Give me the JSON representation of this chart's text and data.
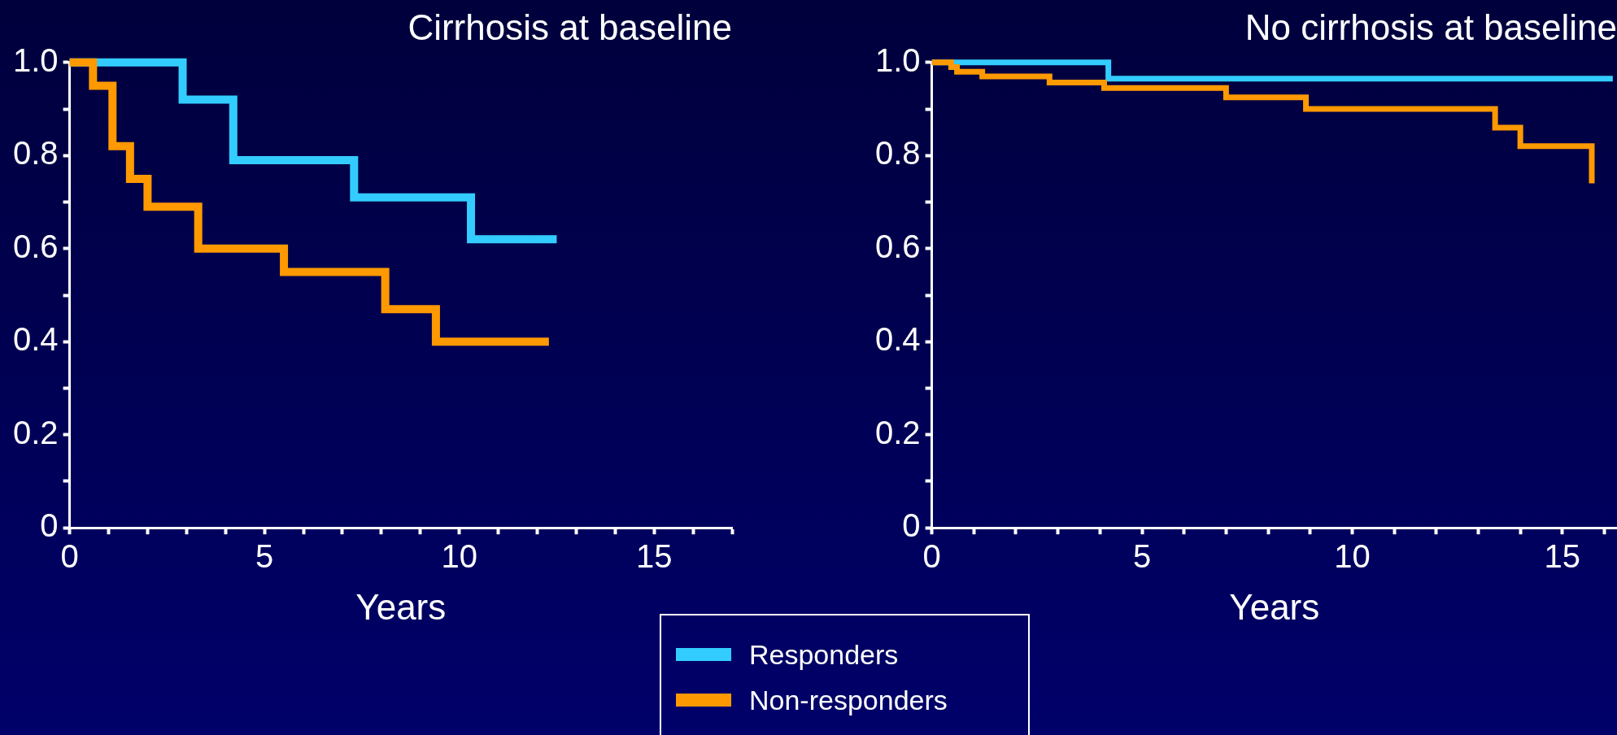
{
  "chart_data": [
    {
      "type": "step",
      "title": "Cirrhosis at baseline",
      "xlabel": "Years",
      "xlim": [
        0,
        17
      ],
      "ylim": [
        0,
        1
      ],
      "xticks": [
        0,
        {
          "value": 1,
          "label": null
        },
        {
          "value": 2,
          "label": null
        },
        {
          "value": 3,
          "label": null
        },
        {
          "value": 4,
          "label": null
        },
        5,
        {
          "value": 6,
          "label": null
        },
        {
          "value": 7,
          "label": null
        },
        {
          "value": 8,
          "label": null
        },
        {
          "value": 9,
          "label": null
        },
        10,
        {
          "value": 11,
          "label": null
        },
        {
          "value": 12,
          "label": null
        },
        {
          "value": 13,
          "label": null
        },
        {
          "value": 14,
          "label": null
        },
        15,
        {
          "value": 16,
          "label": null
        },
        {
          "value": 17,
          "label": null
        }
      ],
      "yticks": [
        0,
        {
          "value": 0.1,
          "label": null
        },
        0.2,
        {
          "value": 0.3,
          "label": null
        },
        0.4,
        {
          "value": 0.5,
          "label": null
        },
        0.6,
        {
          "value": 0.7,
          "label": null
        },
        0.8,
        {
          "value": 0.9,
          "label": null
        },
        {
          "value": 1,
          "label": "1.0"
        }
      ],
      "grid": false,
      "legend": "bottom",
      "series": [
        {
          "name": "Responders",
          "color": "#33ccff",
          "x": [
            0,
            2.9,
            4.2,
            7.3,
            10.3,
            12.5
          ],
          "values": [
            1,
            0.92,
            0.79,
            0.71,
            0.62,
            0.62
          ]
        },
        {
          "name": "Non-responders",
          "color": "#ff9900",
          "x": [
            0,
            0.6,
            1.1,
            1.55,
            2.0,
            3.3,
            5.5,
            8.1,
            9.4,
            12.3
          ],
          "values": [
            1,
            0.95,
            0.82,
            0.75,
            0.69,
            0.6,
            0.55,
            0.47,
            0.4,
            0.4
          ]
        }
      ]
    },
    {
      "type": "step",
      "title": "No cirrhosis at baseline",
      "xlabel": "Years",
      "xlim": [
        0,
        16.3
      ],
      "ylim": [
        0,
        1
      ],
      "xticks": [
        0,
        {
          "value": 1,
          "label": null
        },
        {
          "value": 2,
          "label": null
        },
        {
          "value": 3,
          "label": null
        },
        {
          "value": 4,
          "label": null
        },
        5,
        {
          "value": 6,
          "label": null
        },
        {
          "value": 7,
          "label": null
        },
        {
          "value": 8,
          "label": null
        },
        {
          "value": 9,
          "label": null
        },
        10,
        {
          "value": 11,
          "label": null
        },
        {
          "value": 12,
          "label": null
        },
        {
          "value": 13,
          "label": null
        },
        {
          "value": 14,
          "label": null
        },
        15,
        {
          "value": 16,
          "label": null
        }
      ],
      "yticks": [
        0,
        {
          "value": 0.1,
          "label": null
        },
        0.2,
        {
          "value": 0.3,
          "label": null
        },
        0.4,
        {
          "value": 0.5,
          "label": null
        },
        0.6,
        {
          "value": 0.7,
          "label": null
        },
        0.8,
        {
          "value": 0.9,
          "label": null
        },
        {
          "value": 1,
          "label": "1.0"
        }
      ],
      "grid": false,
      "series": [
        {
          "color": "#33ccff",
          "x": [
            0,
            4.2,
            16.2
          ],
          "values": [
            1,
            0.965,
            0.965
          ]
        },
        {
          "color": "#ff9900",
          "x": [
            0,
            0.46,
            0.6,
            1.2,
            2.8,
            4.1,
            7.0,
            8.9,
            13.4,
            14.0,
            15.7
          ],
          "values": [
            1,
            0.99,
            0.98,
            0.97,
            0.957,
            0.945,
            0.925,
            0.9,
            0.86,
            0.82,
            0.74
          ]
        }
      ]
    }
  ]
}
